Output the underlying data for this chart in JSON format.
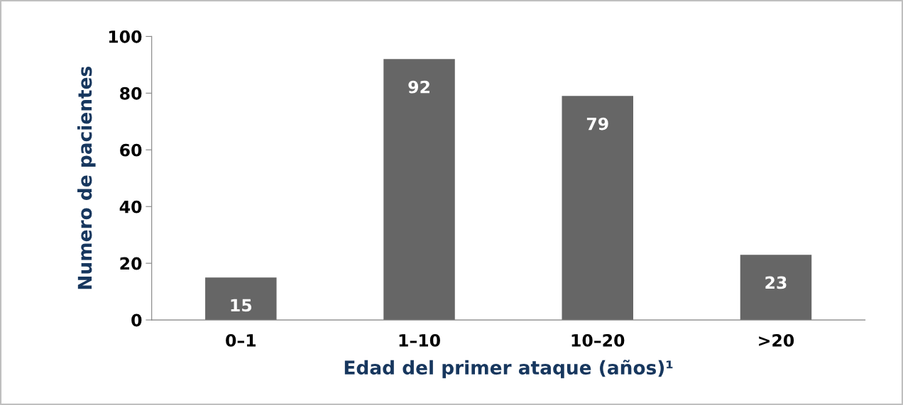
{
  "chart_data": {
    "type": "bar",
    "xlabel": "Edad del primer ataque (años)¹",
    "ylabel": "Numero de pacientes",
    "categories": [
      "0–1",
      "1–10",
      "10–20",
      ">20"
    ],
    "values": [
      15,
      92,
      79,
      23
    ],
    "color": "#666666",
    "ylim": [
      0,
      100
    ],
    "yticks": [
      0,
      20,
      40,
      60,
      80,
      100
    ],
    "grid": false,
    "data_labels": true
  }
}
